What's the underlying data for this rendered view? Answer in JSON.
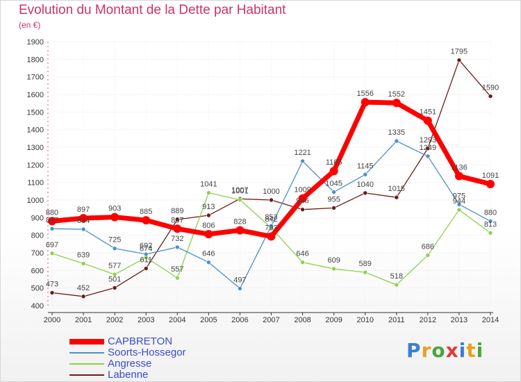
{
  "chart_data": {
    "type": "line",
    "title": "Evolution du Montant de la Dette par Habitant",
    "subtitle": "(en €)",
    "x": [
      "2000",
      "2001",
      "2002",
      "2003",
      "2004",
      "2005",
      "2006",
      "2007",
      "2008",
      "2009",
      "2010",
      "2011",
      "2012",
      "2013",
      "2014"
    ],
    "ylim": [
      400,
      1900
    ],
    "yticks": [
      400,
      500,
      600,
      700,
      800,
      900,
      1000,
      1100,
      1200,
      1300,
      1400,
      1500,
      1600,
      1700,
      1800,
      1900
    ],
    "grid": true,
    "legend": "bottom-left",
    "series": [
      {
        "name": "CAPBRETON",
        "color": "#ff0000",
        "values": [
          880,
          897,
          903,
          885,
          837,
          806,
          828,
          793,
          1009,
          1165,
          1556,
          1552,
          1451,
          1136,
          1091
        ],
        "labels": [
          "880",
          "897",
          "903",
          "885",
          "837",
          "806",
          "828",
          "793",
          "1009",
          "1165",
          "1556",
          "1552",
          "1451",
          "1136",
          "1091"
        ]
      },
      {
        "name": "Soorts-Hossegor",
        "color": "#4a90c8",
        "values": [
          837,
          834,
          725,
          692,
          732,
          646,
          497,
          853,
          1221,
          1045,
          1145,
          1335,
          1249,
          975,
          880
        ],
        "labels": [
          "837",
          "834",
          "725",
          "692",
          "732",
          "646",
          "497",
          "853",
          "1221",
          "1045",
          "1145",
          "1335",
          "1249",
          "975",
          "880"
        ]
      },
      {
        "name": "Angresse",
        "color": "#8ed14a",
        "values": [
          697,
          639,
          577,
          674,
          557,
          1041,
          1001,
          842,
          646,
          609,
          589,
          518,
          686,
          944,
          813
        ],
        "labels": [
          "697",
          "639",
          "577",
          "674",
          "557",
          "1041",
          "1001",
          "842",
          "646",
          "609",
          "589",
          "518",
          "686",
          "944",
          "813"
        ]
      },
      {
        "name": "Labenne",
        "color": "#6e1a1a",
        "values": [
          473,
          452,
          501,
          611,
          889,
          913,
          1007,
          1000,
          946,
          955,
          1040,
          1015,
          1293,
          1795,
          1590
        ],
        "labels": [
          "473",
          "452",
          "501",
          "611",
          "889",
          "913",
          "1007",
          "1000",
          "946",
          "955",
          "1040",
          "1015",
          "1293",
          "1795",
          "1590"
        ]
      }
    ]
  },
  "logo": {
    "text": [
      "P",
      "r",
      "o",
      "x",
      "i",
      "t",
      "i"
    ],
    "colors": [
      "#3a7fd0",
      "#e8a020",
      "#4aa63a",
      "#e23a3a",
      "#3a7fd0",
      "#e8a020",
      "#4aa63a"
    ]
  }
}
